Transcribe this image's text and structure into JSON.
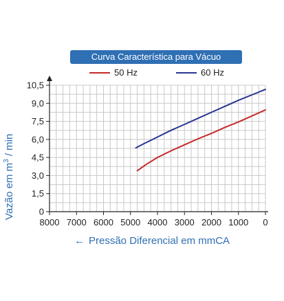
{
  "chart_data": {
    "type": "line",
    "title": "Curva Característica para Vácuo",
    "ylabel_pre": "Vazão em m",
    "ylabel_sup": "3",
    "ylabel_post": " / min",
    "xlabel": "Pressão Diferencial em mmCA",
    "xlabel_arrow": "←",
    "x_ticks": [
      "8000",
      "7000",
      "6000",
      "5000",
      "4000",
      "3000",
      "2000",
      "1000",
      "0"
    ],
    "y_ticks": [
      "0",
      "1,5",
      "3,0",
      "4,5",
      "6,0",
      "7,5",
      "9,0",
      "10,5"
    ],
    "xlim": [
      8000,
      0
    ],
    "ylim": [
      0,
      10.5
    ],
    "grid": true,
    "legend_position": "top",
    "series": [
      {
        "name": "50 Hz",
        "color": "#c62828",
        "x": [
          4750,
          4400,
          4000,
          3500,
          3000,
          2500,
          2000,
          1500,
          1000,
          500,
          0
        ],
        "y": [
          3.4,
          3.95,
          4.5,
          5.05,
          5.55,
          6.05,
          6.5,
          7.0,
          7.45,
          7.95,
          8.45
        ]
      },
      {
        "name": "60 Hz",
        "color": "#283593",
        "x": [
          4800,
          4500,
          4000,
          3500,
          3000,
          2500,
          2000,
          1500,
          1000,
          500,
          0
        ],
        "y": [
          5.3,
          5.65,
          6.2,
          6.75,
          7.25,
          7.75,
          8.25,
          8.75,
          9.25,
          9.7,
          10.15
        ]
      }
    ]
  }
}
